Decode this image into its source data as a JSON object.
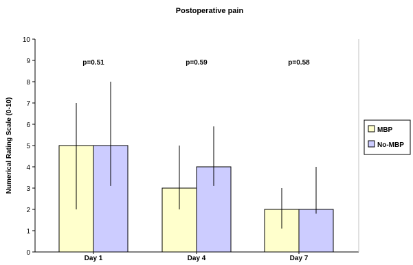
{
  "chart_data": {
    "type": "bar",
    "title": "Postoperative pain",
    "xlabel": "",
    "ylabel": "Numerical Rating Scale (0-10)",
    "ylim": [
      0,
      10
    ],
    "yticks": [
      "0",
      "1",
      "2",
      "3",
      "4",
      "5",
      "6",
      "7",
      "8",
      "9",
      "10"
    ],
    "categories": [
      "Day 1",
      "Day 4",
      "Day 7"
    ],
    "series": [
      {
        "name": "MBP",
        "color": "#FFFFCC",
        "values": [
          5,
          3,
          2
        ],
        "error_low": [
          2,
          2,
          1.1
        ],
        "error_high": [
          7,
          5,
          3
        ]
      },
      {
        "name": "No-MBP",
        "color": "#CCCCFF",
        "values": [
          5,
          4,
          2
        ],
        "error_low": [
          3.1,
          3.1,
          1.8
        ],
        "error_high": [
          8,
          5.9,
          4
        ]
      }
    ],
    "annotations": [
      "p=0.51",
      "p=0.59",
      "p=0.58"
    ],
    "grid": false,
    "legend_position": "right"
  }
}
